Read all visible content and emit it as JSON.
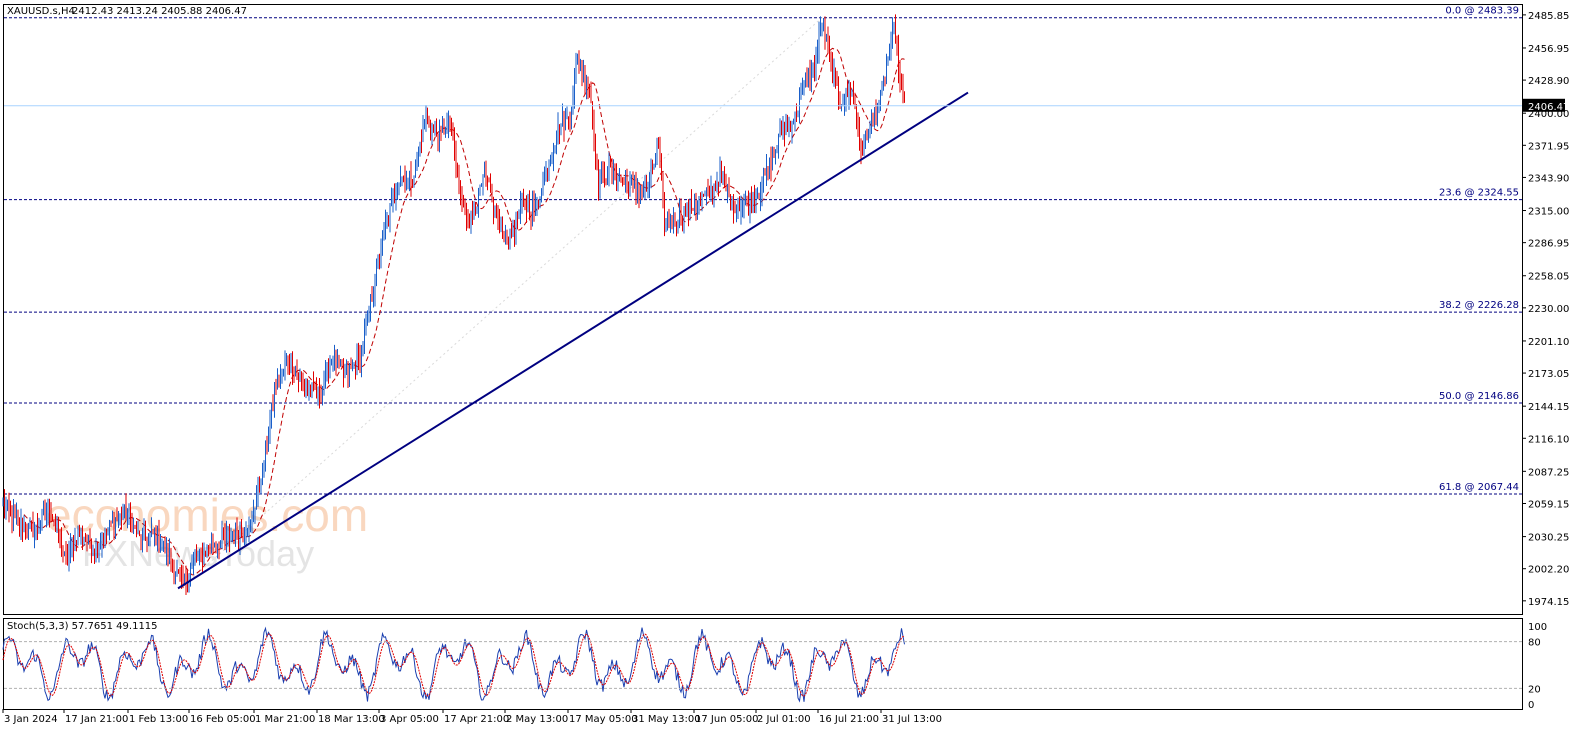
{
  "header": {
    "symbol": "XAUUSD.s,H4",
    "ohlc": "2412.43 2413.24 2405.88 2406.47"
  },
  "watermark": {
    "brand": "economies.com",
    "brand_sub": "FXNewsToday"
  },
  "indicator": {
    "label": "Stoch(5,3,3) 57.7651 49.1115",
    "levels": [
      "100",
      "80",
      "20",
      "0"
    ]
  },
  "chart_data": {
    "type": "candlestick",
    "instrument": "XAUUSD.s",
    "timeframe": "H4",
    "ohlc_last": {
      "open": 2412.43,
      "high": 2413.24,
      "low": 2405.88,
      "close": 2406.47
    },
    "current_price_label": "2406.47",
    "ylim": [
      1962.65,
      2494.48
    ],
    "y_ticks": [
      "2485.85",
      "2456.95",
      "2428.90",
      "2400.00",
      "2371.95",
      "2343.90",
      "2315.00",
      "2286.95",
      "2258.05",
      "2230.00",
      "2201.10",
      "2173.05",
      "2144.15",
      "2116.10",
      "2087.25",
      "2059.15",
      "2030.25",
      "2002.20",
      "1974.15"
    ],
    "x_tick_labels": [
      "3 Jan 2024",
      "17 Jan 21:00",
      "1 Feb 13:00",
      "16 Feb 05:00",
      "1 Mar 21:00",
      "18 Mar 13:00",
      "3 Apr 05:00",
      "17 Apr 21:00",
      "2 May 13:00",
      "17 May 05:00",
      "31 May 13:00",
      "17 Jun 05:00",
      "2 Jul 01:00",
      "16 Jul 21:00",
      "31 Jul 13:00"
    ],
    "fibonacci": [
      {
        "label": "0.0 @ 2483.39",
        "price": 2483.39
      },
      {
        "label": "23.6 @ 2324.55",
        "price": 2324.55
      },
      {
        "label": "38.2 @ 2226.28",
        "price": 2226.28
      },
      {
        "label": "50.0 @ 2146.86",
        "price": 2146.86
      },
      {
        "label": "61.8 @ 2067.44",
        "price": 2067.44
      }
    ],
    "trendline": {
      "start": {
        "bar": 178,
        "price": 1985
      },
      "end": {
        "bar": 968,
        "price": 2418
      }
    },
    "price_path": [
      {
        "bar": 3,
        "price": 2058
      },
      {
        "bar": 20,
        "price": 2040
      },
      {
        "bar": 35,
        "price": 2035
      },
      {
        "bar": 50,
        "price": 2055
      },
      {
        "bar": 65,
        "price": 2008
      },
      {
        "bar": 80,
        "price": 2035
      },
      {
        "bar": 95,
        "price": 2018
      },
      {
        "bar": 110,
        "price": 2040
      },
      {
        "bar": 125,
        "price": 2052
      },
      {
        "bar": 140,
        "price": 2028
      },
      {
        "bar": 155,
        "price": 2032
      },
      {
        "bar": 170,
        "price": 2012
      },
      {
        "bar": 182,
        "price": 1986
      },
      {
        "bar": 195,
        "price": 2010
      },
      {
        "bar": 215,
        "price": 2025
      },
      {
        "bar": 235,
        "price": 2030
      },
      {
        "bar": 250,
        "price": 2040
      },
      {
        "bar": 262,
        "price": 2085
      },
      {
        "bar": 275,
        "price": 2160
      },
      {
        "bar": 288,
        "price": 2185
      },
      {
        "bar": 305,
        "price": 2160
      },
      {
        "bar": 320,
        "price": 2155
      },
      {
        "bar": 333,
        "price": 2190
      },
      {
        "bar": 345,
        "price": 2170
      },
      {
        "bar": 360,
        "price": 2185
      },
      {
        "bar": 372,
        "price": 2240
      },
      {
        "bar": 385,
        "price": 2300
      },
      {
        "bar": 400,
        "price": 2345
      },
      {
        "bar": 412,
        "price": 2340
      },
      {
        "bar": 425,
        "price": 2395
      },
      {
        "bar": 438,
        "price": 2380
      },
      {
        "bar": 450,
        "price": 2390
      },
      {
        "bar": 462,
        "price": 2320
      },
      {
        "bar": 470,
        "price": 2305
      },
      {
        "bar": 485,
        "price": 2345
      },
      {
        "bar": 500,
        "price": 2300
      },
      {
        "bar": 510,
        "price": 2290
      },
      {
        "bar": 522,
        "price": 2320
      },
      {
        "bar": 535,
        "price": 2315
      },
      {
        "bar": 548,
        "price": 2355
      },
      {
        "bar": 560,
        "price": 2390
      },
      {
        "bar": 570,
        "price": 2395
      },
      {
        "bar": 577,
        "price": 2445
      },
      {
        "bar": 590,
        "price": 2420
      },
      {
        "bar": 598,
        "price": 2340
      },
      {
        "bar": 612,
        "price": 2350
      },
      {
        "bar": 625,
        "price": 2340
      },
      {
        "bar": 640,
        "price": 2330
      },
      {
        "bar": 650,
        "price": 2340
      },
      {
        "bar": 658,
        "price": 2375
      },
      {
        "bar": 665,
        "price": 2300
      },
      {
        "bar": 680,
        "price": 2310
      },
      {
        "bar": 695,
        "price": 2320
      },
      {
        "bar": 710,
        "price": 2330
      },
      {
        "bar": 720,
        "price": 2345
      },
      {
        "bar": 732,
        "price": 2320
      },
      {
        "bar": 745,
        "price": 2320
      },
      {
        "bar": 758,
        "price": 2330
      },
      {
        "bar": 770,
        "price": 2355
      },
      {
        "bar": 782,
        "price": 2385
      },
      {
        "bar": 795,
        "price": 2395
      },
      {
        "bar": 805,
        "price": 2430
      },
      {
        "bar": 815,
        "price": 2440
      },
      {
        "bar": 822,
        "price": 2480
      },
      {
        "bar": 830,
        "price": 2445
      },
      {
        "bar": 840,
        "price": 2410
      },
      {
        "bar": 852,
        "price": 2420
      },
      {
        "bar": 862,
        "price": 2365
      },
      {
        "bar": 870,
        "price": 2390
      },
      {
        "bar": 880,
        "price": 2410
      },
      {
        "bar": 888,
        "price": 2450
      },
      {
        "bar": 895,
        "price": 2475
      },
      {
        "bar": 900,
        "price": 2425
      },
      {
        "bar": 905,
        "price": 2406
      }
    ]
  }
}
